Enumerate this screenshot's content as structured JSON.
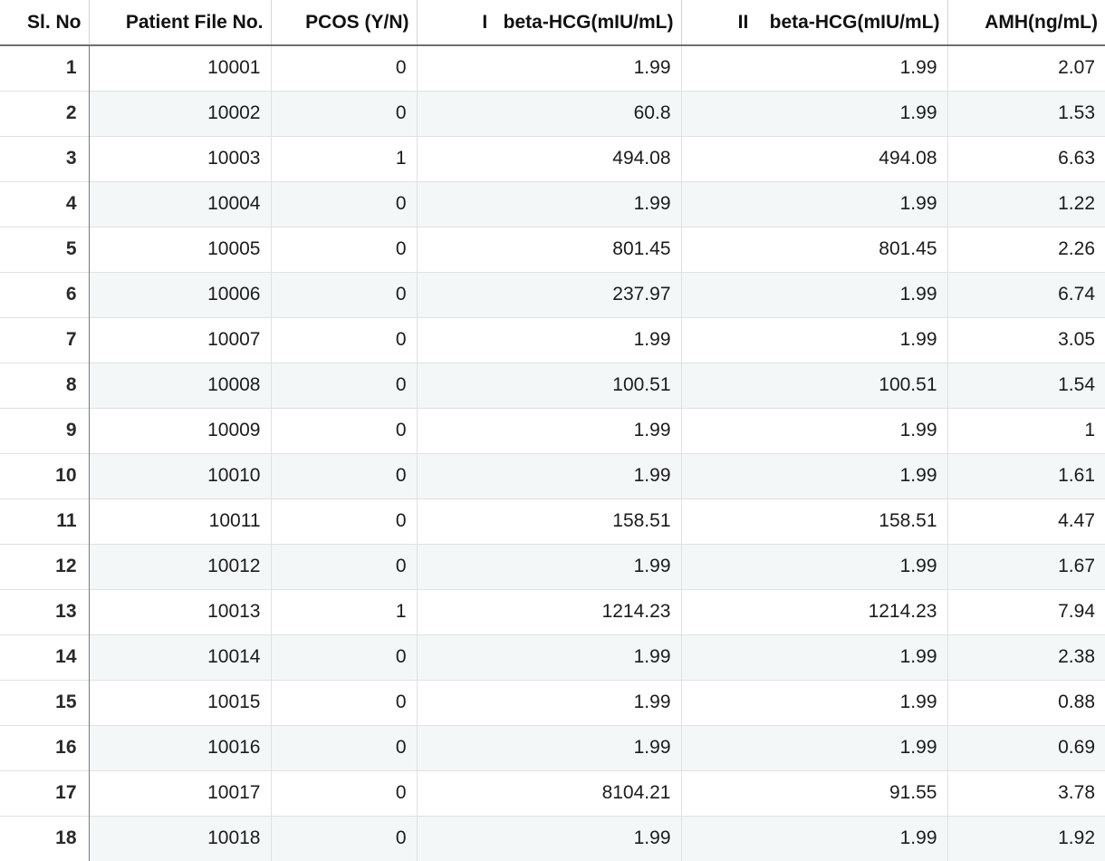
{
  "table": {
    "columns": [
      "Sl. No",
      "Patient File No.",
      "PCOS (Y/N)",
      "I   beta-HCG(mIU/mL)",
      "II    beta-HCG(mIU/mL)",
      "AMH(ng/mL)"
    ],
    "rows": [
      [
        "1",
        "10001",
        "0",
        "1.99",
        "1.99",
        "2.07"
      ],
      [
        "2",
        "10002",
        "0",
        "60.8",
        "1.99",
        "1.53"
      ],
      [
        "3",
        "10003",
        "1",
        "494.08",
        "494.08",
        "6.63"
      ],
      [
        "4",
        "10004",
        "0",
        "1.99",
        "1.99",
        "1.22"
      ],
      [
        "5",
        "10005",
        "0",
        "801.45",
        "801.45",
        "2.26"
      ],
      [
        "6",
        "10006",
        "0",
        "237.97",
        "1.99",
        "6.74"
      ],
      [
        "7",
        "10007",
        "0",
        "1.99",
        "1.99",
        "3.05"
      ],
      [
        "8",
        "10008",
        "0",
        "100.51",
        "100.51",
        "1.54"
      ],
      [
        "9",
        "10009",
        "0",
        "1.99",
        "1.99",
        "1"
      ],
      [
        "10",
        "10010",
        "0",
        "1.99",
        "1.99",
        "1.61"
      ],
      [
        "11",
        "10011",
        "0",
        "158.51",
        "158.51",
        "4.47"
      ],
      [
        "12",
        "10012",
        "0",
        "1.99",
        "1.99",
        "1.67"
      ],
      [
        "13",
        "10013",
        "1",
        "1214.23",
        "1214.23",
        "7.94"
      ],
      [
        "14",
        "10014",
        "0",
        "1.99",
        "1.99",
        "2.38"
      ],
      [
        "15",
        "10015",
        "0",
        "1.99",
        "1.99",
        "0.88"
      ],
      [
        "16",
        "10016",
        "0",
        "1.99",
        "1.99",
        "0.69"
      ],
      [
        "17",
        "10017",
        "0",
        "8104.21",
        "91.55",
        "3.78"
      ],
      [
        "18",
        "10018",
        "0",
        "1.99",
        "1.99",
        "1.92"
      ]
    ]
  }
}
